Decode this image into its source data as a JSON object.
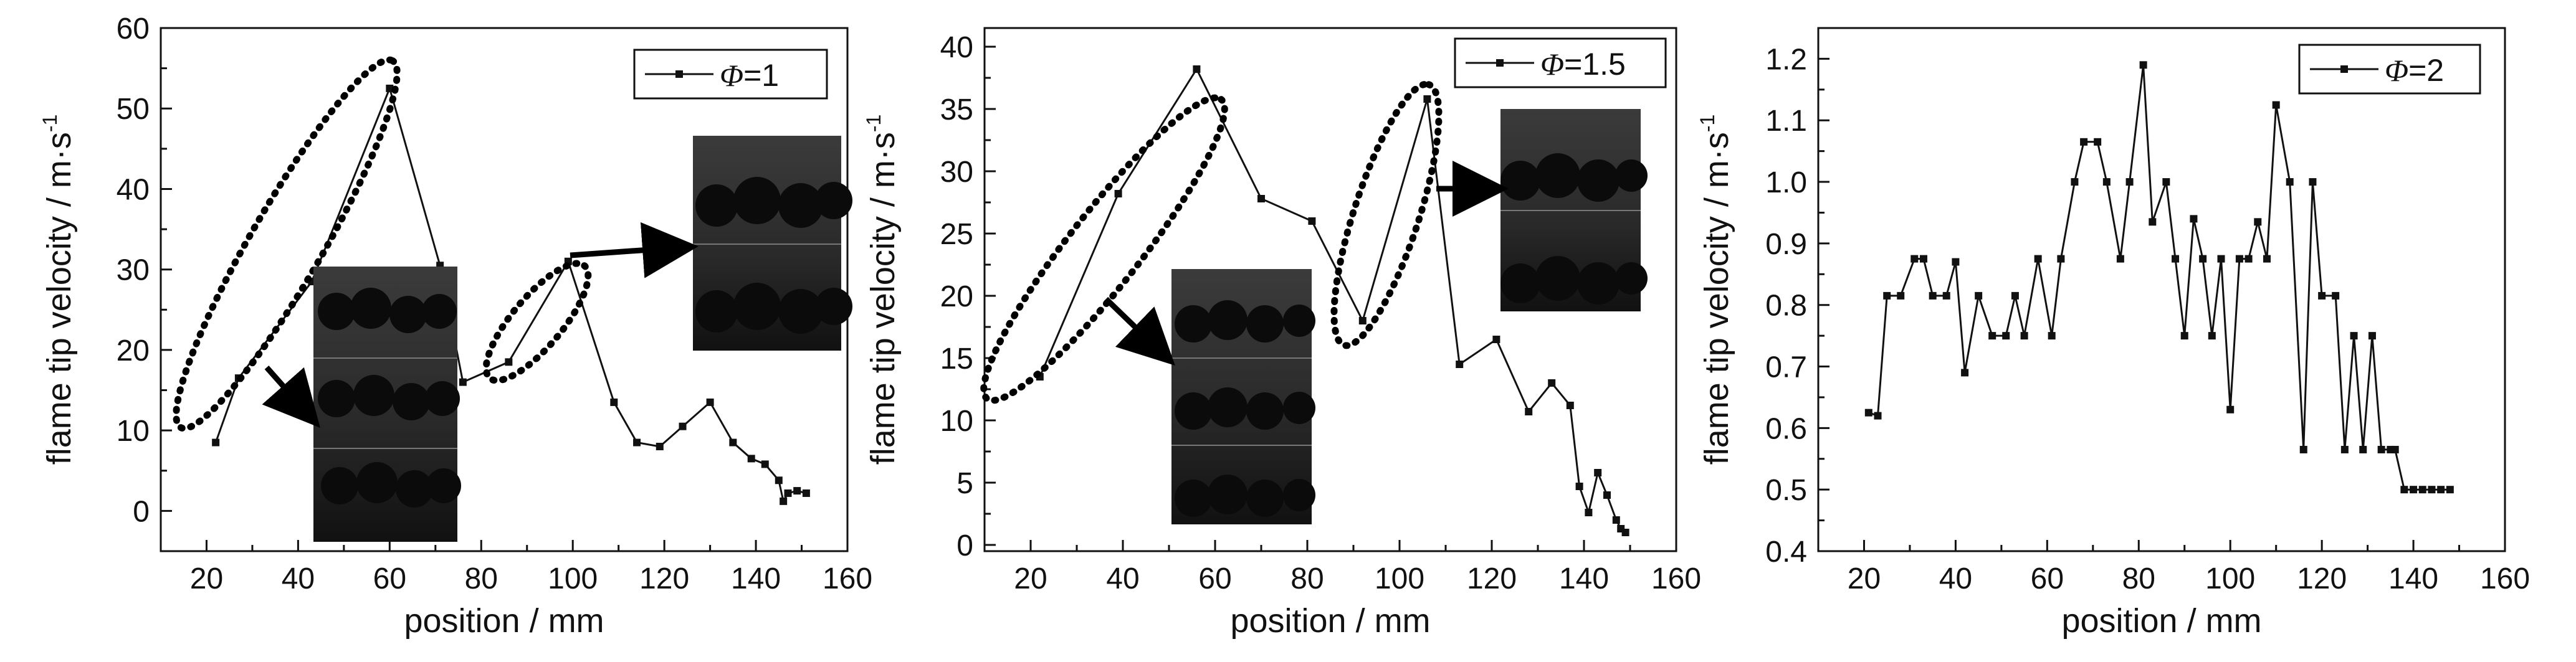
{
  "chart_data": [
    {
      "type": "line",
      "title": "",
      "xlabel": "position / mm",
      "ylabel": "flame tip velocity / m·s",
      "ylabel_superscript": "-1",
      "xlim": [
        10,
        160
      ],
      "ylim": [
        -5,
        60
      ],
      "xticks": [
        20,
        40,
        60,
        80,
        100,
        120,
        140,
        160
      ],
      "yticks": [
        0,
        10,
        20,
        30,
        40,
        50,
        60
      ],
      "legend_position": "top-right",
      "legend_symbol": "Φ",
      "legend_value": "=1",
      "series": [
        {
          "name": "Φ=1",
          "x": [
            22,
            27,
            43,
            60,
            71,
            76,
            86,
            99,
            109,
            114,
            119,
            124,
            130,
            135,
            139,
            142,
            145,
            146,
            147,
            149,
            151
          ],
          "y": [
            8.5,
            16.5,
            28.5,
            52.5,
            30.5,
            16,
            18.5,
            31,
            13.5,
            8.5,
            8,
            10.5,
            13.5,
            8.5,
            6.5,
            5.8,
            3.8,
            1.2,
            2.2,
            2.5,
            2.2
          ]
        }
      ],
      "annotations": [
        "dotted ellipse around rising segment 25–62 mm",
        "dotted ellipse around segment 85–101 mm",
        "flame photograph insets"
      ]
    },
    {
      "type": "line",
      "title": "",
      "xlabel": "position / mm",
      "ylabel": "flame tip velocity / m·s",
      "ylabel_superscript": "-1",
      "xlim": [
        10,
        160
      ],
      "ylim": [
        -0.5,
        41.5
      ],
      "xticks": [
        20,
        40,
        60,
        80,
        100,
        120,
        140,
        160
      ],
      "yticks": [
        0,
        5,
        10,
        15,
        20,
        25,
        30,
        35,
        40
      ],
      "legend_position": "top-right",
      "legend_symbol": "Φ",
      "legend_value": "=1.5",
      "series": [
        {
          "name": "Φ=1.5",
          "x": [
            22,
            39,
            56,
            70,
            81,
            92,
            106,
            113,
            121,
            128,
            133,
            137,
            139,
            141,
            143,
            145,
            147,
            148,
            149
          ],
          "y": [
            13.5,
            28.2,
            38.2,
            27.8,
            26,
            18,
            35.8,
            14.5,
            16.5,
            10.7,
            13,
            11.2,
            4.7,
            2.6,
            5.8,
            4,
            2,
            1.3,
            1
          ]
        }
      ],
      "annotations": [
        "dotted ellipse around segment 20–58 mm",
        "dotted ellipse around segment 92–110 mm",
        "flame photograph insets"
      ]
    },
    {
      "type": "line",
      "title": "",
      "xlabel": "position / mm",
      "ylabel": "flame tip velocity / m·s",
      "ylabel_superscript": "-1",
      "xlim": [
        10,
        160
      ],
      "ylim": [
        0.4,
        1.25
      ],
      "xticks": [
        20,
        40,
        60,
        80,
        100,
        120,
        140,
        160
      ],
      "yticks": [
        0.4,
        0.5,
        0.6,
        0.7,
        0.8,
        0.9,
        1.0,
        1.1,
        1.2
      ],
      "legend_position": "top-right",
      "legend_symbol": "Φ",
      "legend_value": "=2",
      "series": [
        {
          "name": "Φ=2",
          "x": [
            21,
            23,
            25,
            28,
            31,
            33,
            35,
            38,
            40,
            42,
            45,
            48,
            51,
            53,
            55,
            58,
            61,
            63,
            66,
            68,
            71,
            73,
            76,
            78,
            81,
            83,
            86,
            88,
            90,
            92,
            94,
            96,
            98,
            100,
            102,
            104,
            106,
            108,
            110,
            113,
            116,
            118,
            120,
            123,
            125,
            127,
            129,
            131,
            133,
            135,
            136,
            138,
            140,
            142,
            144,
            146,
            148
          ],
          "y": [
            0.625,
            0.62,
            0.815,
            0.815,
            0.875,
            0.875,
            0.815,
            0.815,
            0.87,
            0.69,
            0.815,
            0.75,
            0.75,
            0.815,
            0.75,
            0.875,
            0.75,
            0.875,
            1.0,
            1.065,
            1.065,
            1.0,
            0.875,
            1.0,
            1.19,
            0.935,
            1.0,
            0.875,
            0.75,
            0.94,
            0.875,
            0.75,
            0.875,
            0.63,
            0.875,
            0.875,
            0.935,
            0.875,
            1.125,
            1.0,
            0.565,
            1.0,
            0.815,
            0.815,
            0.565,
            0.75,
            0.565,
            0.75,
            0.565,
            0.565,
            0.565,
            0.5,
            0.5,
            0.5,
            0.5,
            0.5,
            0.5
          ]
        }
      ]
    }
  ]
}
